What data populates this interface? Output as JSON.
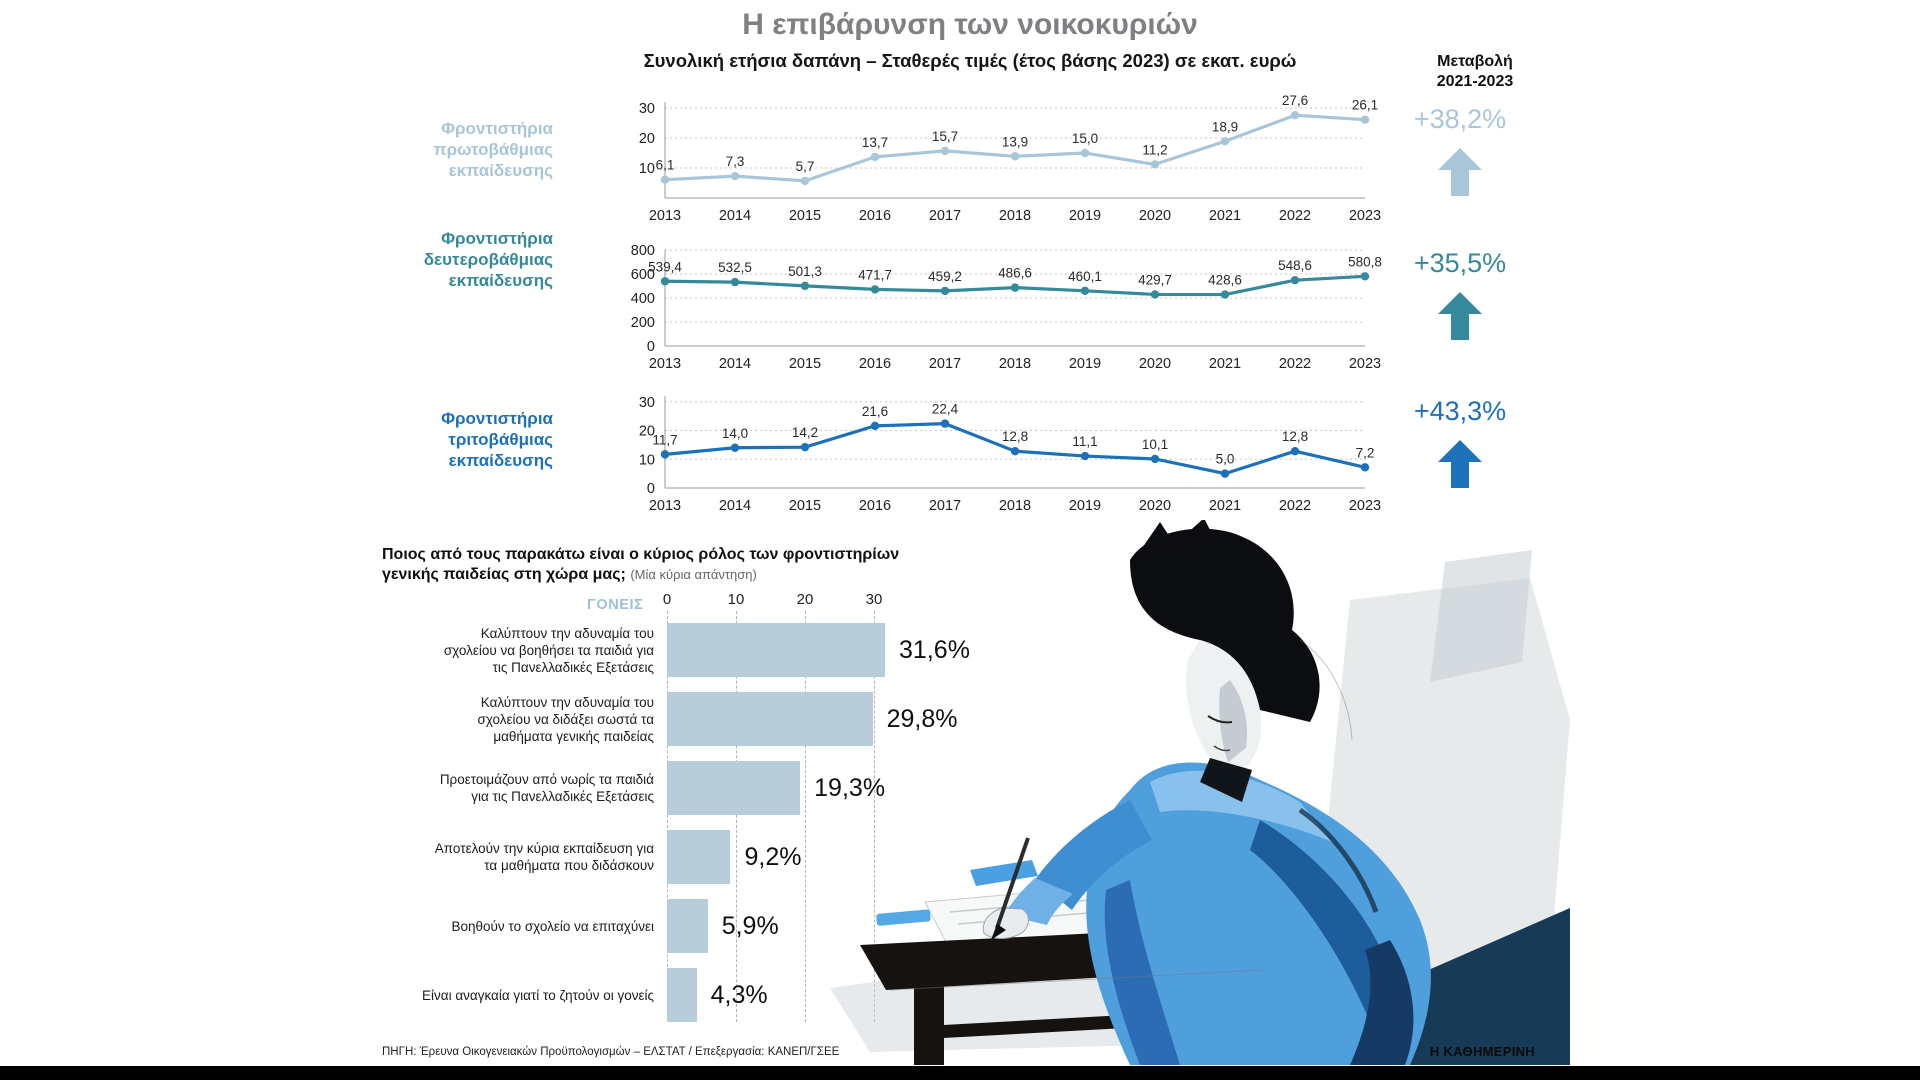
{
  "header": {
    "title": "Η επιβάρυνση των νοικοκυριών",
    "subtitle": "Συνολική ετήσια δαπάνη – Σταθερές τιμές (έτος βάσης 2023) σε εκατ. ευρώ",
    "change_label": "Μεταβολή\n2021-2023"
  },
  "colors": {
    "primary_series": "#a9c6d8",
    "secondary_series": "#35899a",
    "tertiary_series": "#1d71b8",
    "bar_fill": "#b7cdda",
    "title_gray": "#7e8083",
    "footer_bar": "#000000"
  },
  "chart_data": [
    {
      "type": "line",
      "name": "Φροντιστήρια πρωτοβάθμιας εκπαίδευσης",
      "label": "Φροντιστήρια\nπρωτοβάθμιας\nεκπαίδευσης",
      "categories": [
        "2013",
        "2014",
        "2015",
        "2016",
        "2017",
        "2018",
        "2019",
        "2020",
        "2021",
        "2022",
        "2023"
      ],
      "values": [
        6.1,
        7.3,
        5.7,
        13.7,
        15.7,
        13.9,
        15.0,
        11.2,
        18.9,
        27.6,
        26.1
      ],
      "value_labels": [
        "6,1",
        "7,3",
        "5,7",
        "13,7",
        "15,7",
        "13,9",
        "15,0",
        "11,2",
        "18,9",
        "27,6",
        "26,1"
      ],
      "yticks": [
        10,
        20,
        30
      ],
      "ylim": [
        0,
        32
      ],
      "grid": true,
      "color": "#a9c6d8",
      "change": "+38,2%"
    },
    {
      "type": "line",
      "name": "Φροντιστήρια δευτεροβάθμιας εκπαίδευσης",
      "label": "Φροντιστήρια\nδευτεροβάθμιας\nεκπαίδευσης",
      "categories": [
        "2013",
        "2014",
        "2015",
        "2016",
        "2017",
        "2018",
        "2019",
        "2020",
        "2021",
        "2022",
        "2023"
      ],
      "values": [
        539.4,
        532.5,
        501.3,
        471.7,
        459.2,
        486.6,
        460.1,
        429.7,
        428.6,
        548.6,
        580.8
      ],
      "value_labels": [
        "539,4",
        "532,5",
        "501,3",
        "471,7",
        "459,2",
        "486,6",
        "460,1",
        "429,7",
        "428,6",
        "548,6",
        "580,8"
      ],
      "yticks": [
        0,
        200,
        400,
        600,
        800
      ],
      "ylim": [
        0,
        800
      ],
      "grid": true,
      "color": "#35899a",
      "change": "+35,5%"
    },
    {
      "type": "line",
      "name": "Φροντιστήρια τριτοβάθμιας εκπαίδευσης",
      "label": "Φροντιστήρια\nτριτοβάθμιας\nεκπαίδευσης",
      "categories": [
        "2013",
        "2014",
        "2015",
        "2016",
        "2017",
        "2018",
        "2019",
        "2020",
        "2021",
        "2022",
        "2023"
      ],
      "values": [
        11.7,
        14.0,
        14.2,
        21.6,
        22.4,
        12.8,
        11.1,
        10.1,
        5.0,
        12.8,
        7.2
      ],
      "value_labels": [
        "11,7",
        "14,0",
        "14,2",
        "21,6",
        "22,4",
        "12,8",
        "11,1",
        "10,1",
        "5,0",
        "12,8",
        "7,2"
      ],
      "yticks": [
        0,
        10,
        20,
        30
      ],
      "ylim": [
        0,
        32
      ],
      "grid": true,
      "color": "#1d71b8",
      "change": "+43,3%"
    },
    {
      "type": "bar",
      "question": "Ποιος από τους παρακάτω είναι ο κύριος ρόλος των φροντιστηρίων\nγενικής παιδείας στη χώρα μας;",
      "question_note": "(Μία κύρια απάντηση)",
      "group_label": "ΓΟΝΕΙΣ",
      "xticks": [
        0,
        10,
        20,
        30
      ],
      "xlim": [
        0,
        32
      ],
      "bar_color": "#b7cdda",
      "categories": [
        "Καλύπτουν την αδυναμία του\nσχολείου να βοηθήσει τα παιδιά για\nτις Πανελλαδικές Εξετάσεις",
        "Καλύπτουν την αδυναμία του\nσχολείου να διδάξει σωστά τα\nμαθήματα γενικής παιδείας",
        "Προετοιμάζουν από νωρίς τα παιδιά\nγια τις Πανελλαδικές Εξετάσεις",
        "Αποτελούν την κύρια εκπαίδευση για\nτα μαθήματα που διδάσκουν",
        "Βοηθούν το σχολείο να επιταχύνει",
        "Είναι αναγκαία γιατί το ζητούν οι γονείς"
      ],
      "values": [
        31.6,
        29.8,
        19.3,
        9.2,
        5.9,
        4.3
      ],
      "value_labels": [
        "31,6%",
        "29,8%",
        "19,3%",
        "9,2%",
        "5,9%",
        "4,3%"
      ]
    }
  ],
  "footer": {
    "source": "ΠΗΓΗ: Έρευνα Οικογενειακών Προϋπολογισμών – ΕΛΣΤΑΤ / Επεξεργασία: ΚΑΝΕΠ/ΓΣΕΕ",
    "brand": "Η ΚΑΘΗΜΕΡΙΝΗ"
  }
}
